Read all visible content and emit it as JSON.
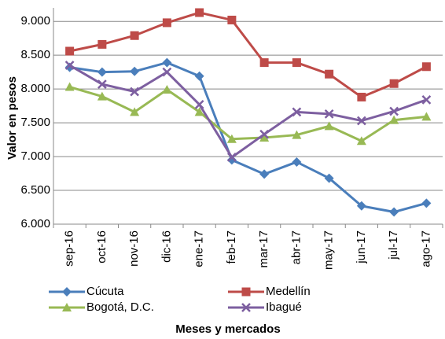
{
  "chart_data": {
    "type": "line",
    "x_label": "Meses y mercados",
    "y_label": "Valor en pesos",
    "categories": [
      "sep-16",
      "oct-16",
      "nov-16",
      "dic-16",
      "ene-17",
      "feb-17",
      "mar-17",
      "abr-17",
      "may-17",
      "jun-17",
      "jul-17",
      "ago-17"
    ],
    "series": [
      {
        "name": "Cúcuta",
        "color": "#4a7ebb",
        "marker": "diamond",
        "values": [
          8320,
          8250,
          8260,
          8390,
          8190,
          6950,
          6740,
          6920,
          6680,
          6270,
          6180,
          6310
        ]
      },
      {
        "name": "Medellín",
        "color": "#be4b48",
        "marker": "square",
        "values": [
          8560,
          8660,
          8790,
          8980,
          9130,
          9020,
          8390,
          8390,
          8220,
          7880,
          8080,
          8330
        ]
      },
      {
        "name": "Bogotá, D.C.",
        "color": "#98b954",
        "marker": "triangle",
        "values": [
          8030,
          7890,
          7660,
          7990,
          7660,
          7260,
          7280,
          7320,
          7450,
          7230,
          7540,
          7590
        ]
      },
      {
        "name": "Ibagué",
        "color": "#7d5fa0",
        "marker": "x",
        "values": [
          8350,
          8070,
          7960,
          8250,
          7770,
          6990,
          7330,
          7660,
          7630,
          7530,
          7670,
          7840
        ]
      }
    ],
    "ylim": [
      6000,
      9200
    ],
    "yticks": [
      {
        "value": 6000,
        "label": "6.000"
      },
      {
        "value": 6500,
        "label": "6.500"
      },
      {
        "value": 7000,
        "label": "7.000"
      },
      {
        "value": 7500,
        "label": "7.500"
      },
      {
        "value": 8000,
        "label": "8.000"
      },
      {
        "value": 8500,
        "label": "8.500"
      },
      {
        "value": 9000,
        "label": "9.000"
      }
    ],
    "grid": true
  }
}
